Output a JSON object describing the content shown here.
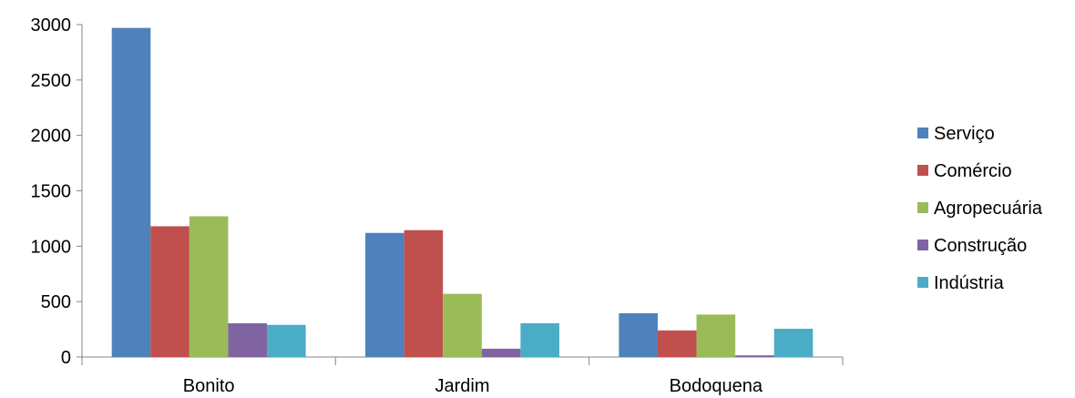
{
  "chart_data": {
    "type": "bar",
    "title": "",
    "xlabel": "",
    "ylabel": "",
    "categories": [
      "Bonito",
      "Jardim",
      "Bodoquena"
    ],
    "ylim": [
      0,
      3000
    ],
    "yticks": [
      0,
      500,
      1000,
      1500,
      2000,
      2500,
      3000
    ],
    "grid": false,
    "legend_position": "right",
    "series": [
      {
        "name": "Serviço",
        "color": "#4f81bd",
        "values": [
          2970,
          1120,
          395
        ]
      },
      {
        "name": "Comércio",
        "color": "#c0504d",
        "values": [
          1180,
          1145,
          240
        ]
      },
      {
        "name": "Agropecuária",
        "color": "#9bbb59",
        "values": [
          1270,
          570,
          383
        ]
      },
      {
        "name": "Construção",
        "color": "#8064a2",
        "values": [
          305,
          75,
          15
        ]
      },
      {
        "name": "Indústria",
        "color": "#4bacc6",
        "values": [
          290,
          305,
          255
        ]
      }
    ]
  }
}
